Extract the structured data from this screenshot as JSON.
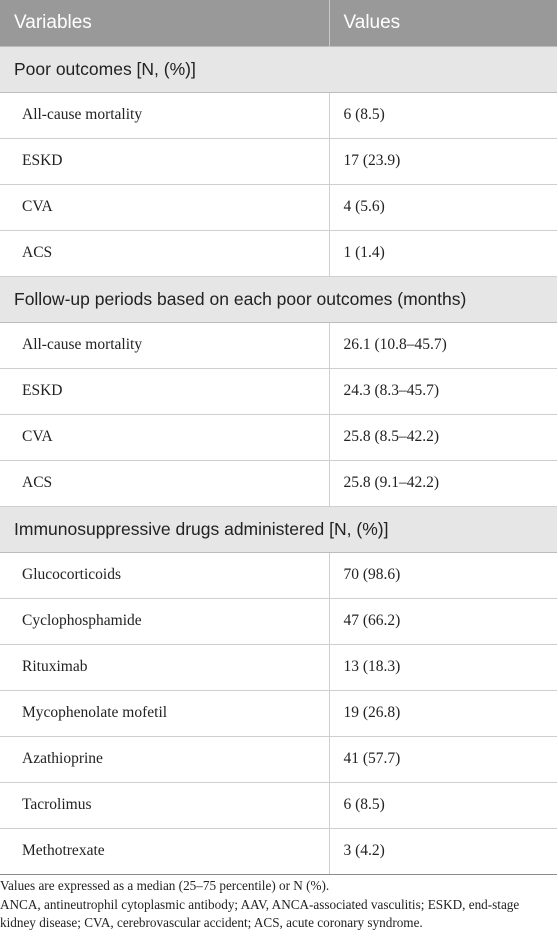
{
  "table": {
    "headers": [
      "Variables",
      "Values"
    ],
    "sections": [
      {
        "title": "Poor outcomes [N, (%)]",
        "rows": [
          [
            "All-cause mortality",
            "6 (8.5)"
          ],
          [
            "ESKD",
            "17 (23.9)"
          ],
          [
            "CVA",
            "4 (5.6)"
          ],
          [
            "ACS",
            "1 (1.4)"
          ]
        ]
      },
      {
        "title": "Follow-up periods based on each poor outcomes (months)",
        "rows": [
          [
            "All-cause mortality",
            "26.1 (10.8–45.7)"
          ],
          [
            "ESKD",
            "24.3 (8.3–45.7)"
          ],
          [
            "CVA",
            "25.8 (8.5–42.2)"
          ],
          [
            "ACS",
            "25.8 (9.1–42.2)"
          ]
        ]
      },
      {
        "title": "Immunosuppressive drugs administered [N, (%)]",
        "rows": [
          [
            "Glucocorticoids",
            "70 (98.6)"
          ],
          [
            "Cyclophosphamide",
            "47 (66.2)"
          ],
          [
            "Rituximab",
            "13 (18.3)"
          ],
          [
            "Mycophenolate mofetil",
            "19 (26.8)"
          ],
          [
            "Azathioprine",
            "41 (57.7)"
          ],
          [
            "Tacrolimus",
            "6 (8.5)"
          ],
          [
            "Methotrexate",
            "3 (4.2)"
          ]
        ]
      }
    ]
  },
  "footnotes": [
    "Values are expressed as a median (25–75 percentile) or N (%).",
    "ANCA, antineutrophil cytoplasmic antibody; AAV, ANCA-associated vasculitis; ESKD, end-stage kidney disease; CVA, cerebrovascular accident; ACS, acute coronary syndrome."
  ]
}
